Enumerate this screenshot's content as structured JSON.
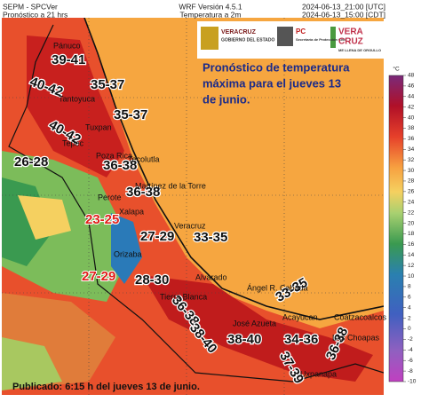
{
  "header": {
    "left": [
      "SEPM - SPCVer",
      "Pronóstico a 21 hrs"
    ],
    "center": [
      "WRF Versión 4.5.1",
      "Temperatura a 2m"
    ],
    "right": [
      "2024-06-13_21:00 [UTC]",
      "2024-06-13_15:00 [CDT]"
    ]
  },
  "logos": {
    "veracruz": "VERACRUZ",
    "gobierno": "GOBIERNO DEL ESTADO",
    "pc": "PC",
    "pc_sub": "Secretaría de Protección Civil",
    "vera": "VERA",
    "cruz": "CRUZ",
    "orgullo": "ME LLENA DE ORGULLO"
  },
  "title": [
    "Pronóstico de temperatura",
    "máxima para el jueves 13",
    "de junio."
  ],
  "footer": "Publicado: 6:15 h del jueves 13 de junio.",
  "ranges": [
    "39-41",
    "40-42",
    "35-37",
    "40-42",
    "35-37",
    "26-28",
    "36-38",
    "36-38",
    "23-25",
    "27-29",
    "33-35",
    "27-29",
    "28-30",
    "36-38",
    "38-40",
    "33-35",
    "34-36",
    "38-40",
    "37-39",
    "36-38"
  ],
  "places": [
    "Pánuco",
    "Tantoyuca",
    "Tuxpan",
    "Poza Rica",
    "Tecolutla",
    "Martínez de la Torre",
    "Perote",
    "Xalapa",
    "Veracruz",
    "Orizaba",
    "Alvarado",
    "Tierra Blanca",
    "Ángel R. Cabada",
    "José Azueta",
    "Acayucan",
    "Coatzacoalcos",
    "Las Choapas",
    "Uxpanapa",
    "Tepec"
  ],
  "colorbar": {
    "unit": "°C",
    "ticks": [
      48,
      46,
      44,
      42,
      40,
      38,
      36,
      34,
      32,
      30,
      28,
      26,
      24,
      22,
      20,
      18,
      16,
      14,
      12,
      10,
      8,
      6,
      4,
      2,
      0,
      -2,
      -4,
      -6,
      -8,
      -10
    ]
  }
}
